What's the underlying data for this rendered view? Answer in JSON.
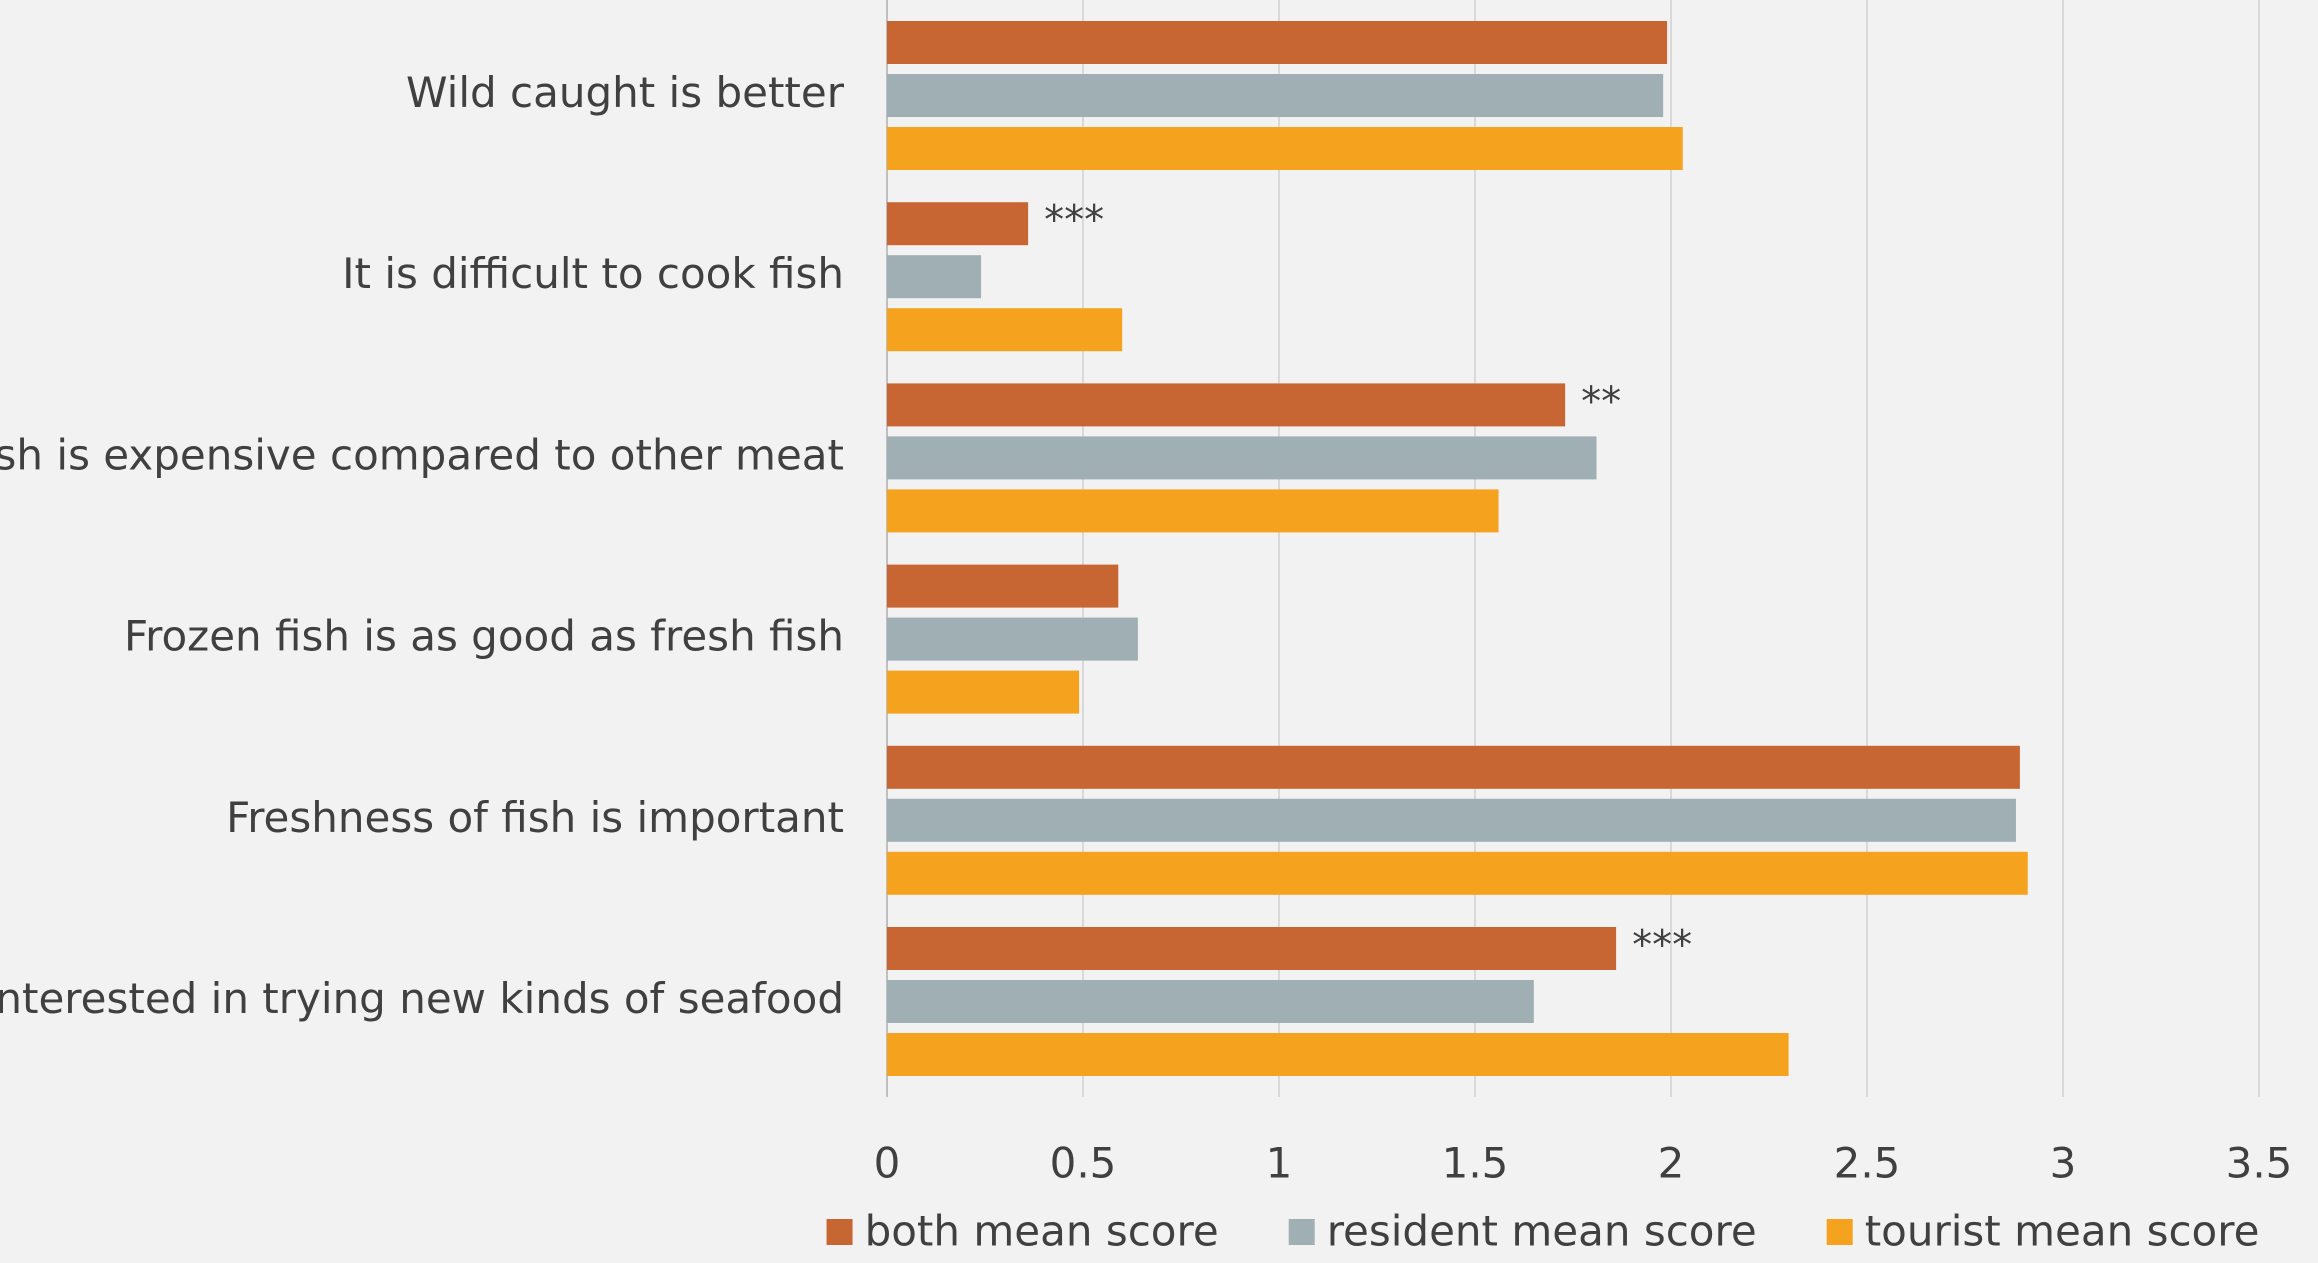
{
  "chart_data": {
    "type": "bar",
    "orientation": "horizontal",
    "categories": [
      "Wild caught is better",
      "It is difficult to cook fish",
      "Fish is expensive compared to other meat",
      "Frozen fish is as good as fresh fish",
      "Freshness of fish is important",
      "Interested in trying new kinds of seafood"
    ],
    "series": [
      {
        "name": "both mean score",
        "color": "#c86633",
        "values": [
          1.99,
          0.36,
          1.73,
          0.59,
          2.89,
          1.86
        ]
      },
      {
        "name": "resident mean score",
        "color": "#9fafb3",
        "values": [
          1.98,
          0.24,
          1.81,
          0.64,
          2.88,
          1.65
        ]
      },
      {
        "name": "tourist mean score",
        "color": "#f5a21e",
        "values": [
          2.03,
          0.6,
          1.56,
          0.49,
          2.91,
          2.3
        ]
      }
    ],
    "annotations": [
      {
        "category_index": 1,
        "series_index": 0,
        "text": "***"
      },
      {
        "category_index": 2,
        "series_index": 0,
        "text": "**"
      },
      {
        "category_index": 5,
        "series_index": 0,
        "text": "***"
      }
    ],
    "x_ticks": [
      "0",
      "0.5",
      "1",
      "1.5",
      "2",
      "2.5",
      "3",
      "3.5"
    ],
    "xlim": [
      0,
      3.5
    ],
    "grid": true,
    "legend_position": "bottom",
    "title": "",
    "xlabel": "",
    "ylabel": ""
  }
}
